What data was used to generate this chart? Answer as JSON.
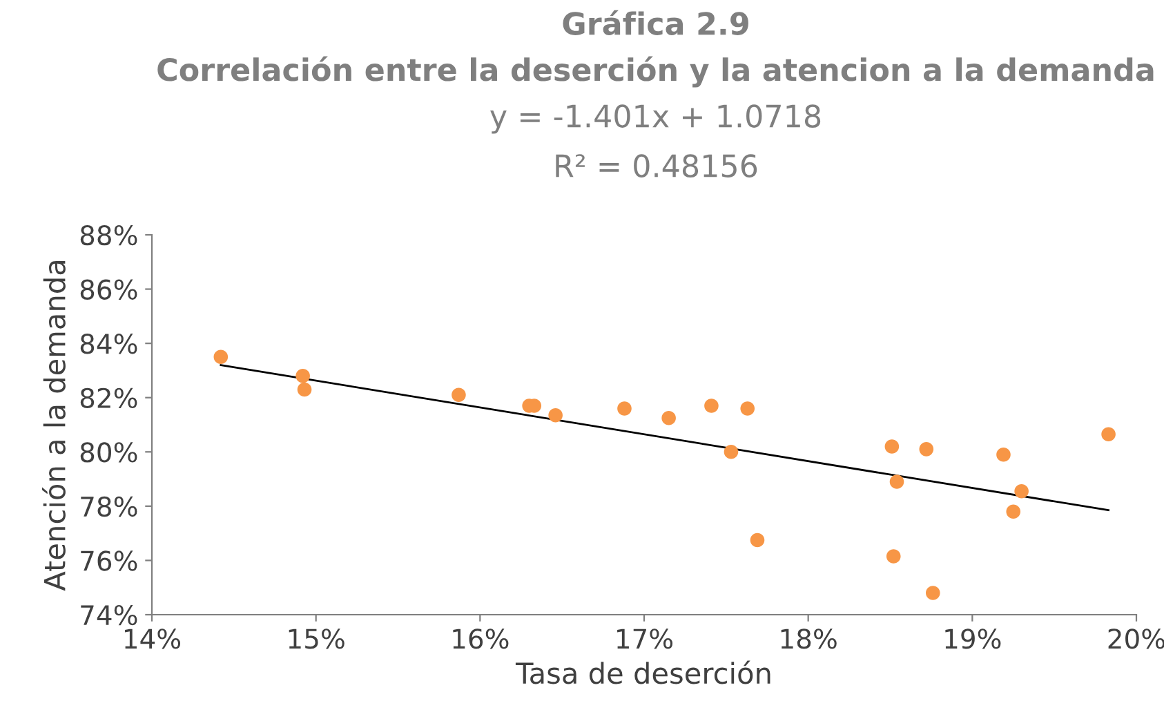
{
  "chart_data": {
    "type": "scatter",
    "title": "Gráfica 2.9",
    "subtitle": "Correlación entre la deserción y la atencion a la demanda",
    "annotations": [
      "y = -1.401x + 1.0718",
      "R² = 0.48156"
    ],
    "xlabel": "Tasa de deserción",
    "ylabel": "Atención a la demanda",
    "series": [
      {
        "color": "#f79646",
        "x": [
          14.42,
          14.92,
          14.93,
          15.87,
          16.3,
          16.33,
          16.46,
          16.88,
          17.15,
          17.41,
          17.63,
          17.53,
          17.69,
          18.51,
          18.54,
          18.52,
          18.72,
          18.76,
          19.19,
          19.3,
          19.25,
          19.83
        ],
        "values": [
          83.5,
          82.8,
          82.3,
          82.1,
          81.7,
          81.7,
          81.35,
          81.6,
          81.25,
          81.7,
          81.6,
          80.0,
          76.75,
          80.2,
          78.9,
          76.15,
          80.1,
          74.8,
          79.9,
          78.55,
          77.8,
          80.65
        ]
      },
      {
        "type": "line",
        "color": "#000000",
        "x": [
          14.42,
          19.83
        ],
        "values": [
          83.2,
          77.85
        ]
      }
    ],
    "xlim": [
      14,
      20
    ],
    "ylim": [
      74,
      88
    ],
    "xticks": [
      {
        "value": 14,
        "label": "14%"
      },
      {
        "value": 15,
        "label": "15%"
      },
      {
        "value": 16,
        "label": "16%"
      },
      {
        "value": 17,
        "label": "17%"
      },
      {
        "value": 18,
        "label": "18%"
      },
      {
        "value": 19,
        "label": "19%"
      },
      {
        "value": 20,
        "label": "20%"
      }
    ],
    "yticks": [
      {
        "value": 74,
        "label": "74%"
      },
      {
        "value": 76,
        "label": "76%"
      },
      {
        "value": 78,
        "label": "78%"
      },
      {
        "value": 80,
        "label": "80%"
      },
      {
        "value": 82,
        "label": "82%"
      },
      {
        "value": 84,
        "label": "84%"
      },
      {
        "value": 86,
        "label": "86%"
      },
      {
        "value": 88,
        "label": "88%"
      }
    ],
    "grid": false,
    "legend": false
  }
}
